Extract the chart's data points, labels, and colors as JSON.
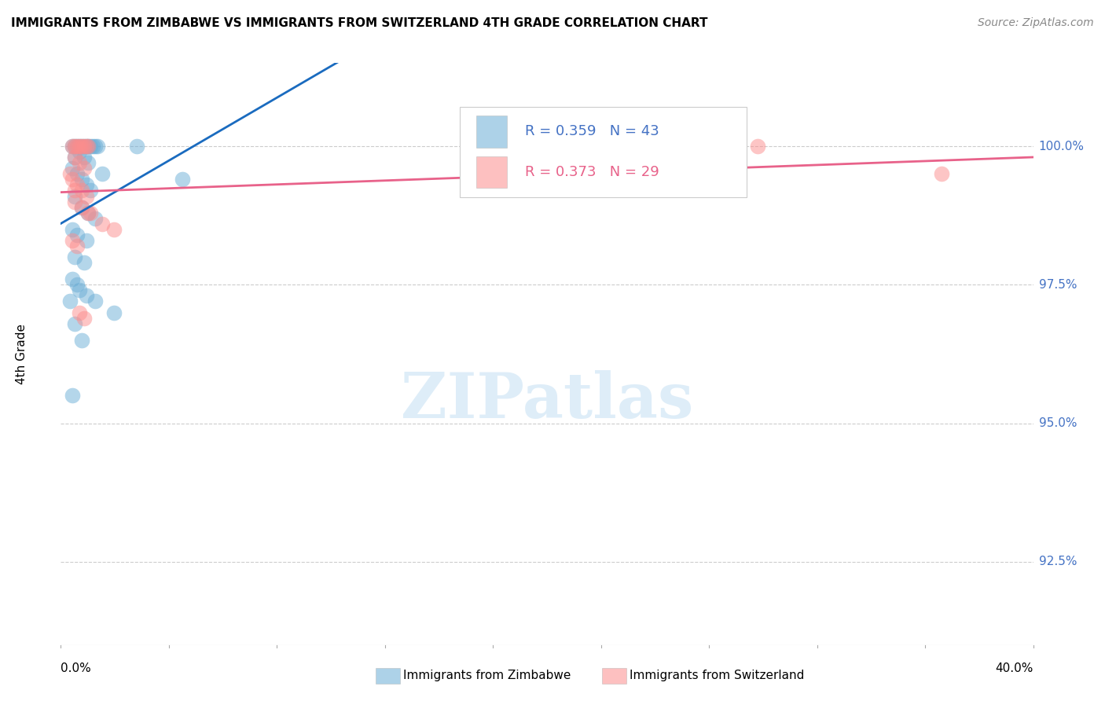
{
  "title": "IMMIGRANTS FROM ZIMBABWE VS IMMIGRANTS FROM SWITZERLAND 4TH GRADE CORRELATION CHART",
  "source": "Source: ZipAtlas.com",
  "ylabel": "4th Grade",
  "yticks": [
    100.0,
    97.5,
    95.0,
    92.5
  ],
  "ytick_labels": [
    "100.0%",
    "97.5%",
    "95.0%",
    "92.5%"
  ],
  "ymin": 91.0,
  "ymax": 101.5,
  "xmin": -0.003,
  "xmax": 0.42,
  "color_zimbabwe": "#6baed6",
  "color_switzerland": "#fc8d8d",
  "trendline_color_zimbabwe": "#1a6bbf",
  "trendline_color_switzerland": "#e8628a",
  "background_color": "#ffffff",
  "scatter_zimbabwe_x": [
    0.002,
    0.003,
    0.004,
    0.005,
    0.006,
    0.007,
    0.008,
    0.009,
    0.01,
    0.011,
    0.012,
    0.013,
    0.003,
    0.005,
    0.007,
    0.009,
    0.002,
    0.004,
    0.006,
    0.008,
    0.01,
    0.003,
    0.006,
    0.009,
    0.012,
    0.002,
    0.004,
    0.008,
    0.015,
    0.003,
    0.007,
    0.002,
    0.004,
    0.005,
    0.008,
    0.012,
    0.03,
    0.05,
    0.02,
    0.001,
    0.003,
    0.006,
    0.002
  ],
  "scatter_zimbabwe_y": [
    100.0,
    100.0,
    100.0,
    100.0,
    100.0,
    100.0,
    100.0,
    100.0,
    100.0,
    100.0,
    100.0,
    100.0,
    99.8,
    99.9,
    99.8,
    99.7,
    99.6,
    99.5,
    99.4,
    99.3,
    99.2,
    99.1,
    98.9,
    98.8,
    98.7,
    98.5,
    98.4,
    98.3,
    99.5,
    98.0,
    97.9,
    97.6,
    97.5,
    97.4,
    97.3,
    97.2,
    100.0,
    99.4,
    97.0,
    97.2,
    96.8,
    96.5,
    95.5
  ],
  "scatter_switzerland_x": [
    0.002,
    0.003,
    0.004,
    0.005,
    0.006,
    0.007,
    0.008,
    0.009,
    0.003,
    0.005,
    0.007,
    0.002,
    0.004,
    0.006,
    0.008,
    0.003,
    0.006,
    0.009,
    0.01,
    0.015,
    0.02,
    0.002,
    0.004,
    0.007,
    0.3,
    0.38,
    0.001,
    0.003,
    0.005
  ],
  "scatter_switzerland_y": [
    100.0,
    100.0,
    100.0,
    100.0,
    100.0,
    100.0,
    100.0,
    100.0,
    99.8,
    99.7,
    99.6,
    99.4,
    99.3,
    99.2,
    99.1,
    99.0,
    98.9,
    98.8,
    98.8,
    98.6,
    98.5,
    98.3,
    98.2,
    96.9,
    100.0,
    99.5,
    99.5,
    99.2,
    97.0
  ]
}
